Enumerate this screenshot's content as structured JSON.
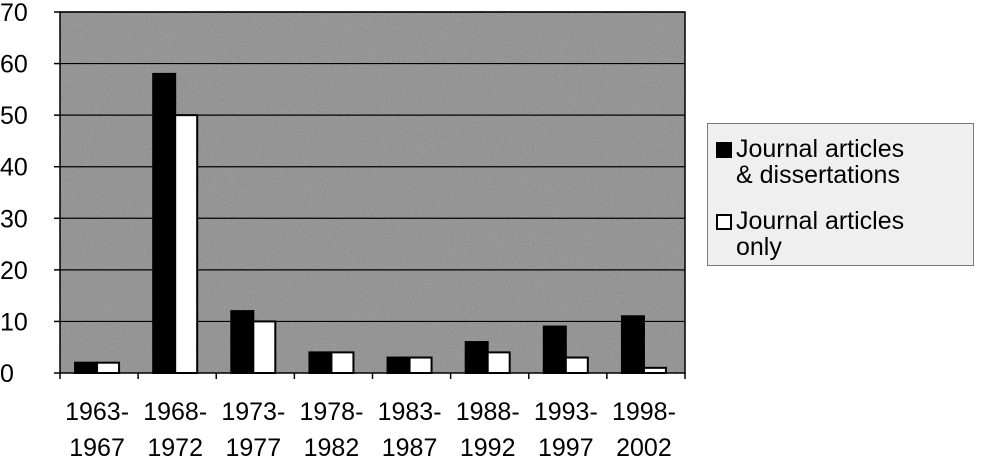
{
  "chart_data": {
    "type": "bar",
    "categories": [
      [
        "1963-",
        "1967"
      ],
      [
        "1968-",
        "1972"
      ],
      [
        "1973-",
        "1977"
      ],
      [
        "1978-",
        "1982"
      ],
      [
        "1983-",
        "1987"
      ],
      [
        "1988-",
        "1992"
      ],
      [
        "1993-",
        "1997"
      ],
      [
        "1998-",
        "2002"
      ]
    ],
    "series": [
      {
        "name": "Journal articles & dissertations",
        "values": [
          2,
          58,
          12,
          4,
          3,
          6,
          9,
          11
        ],
        "color": "#000000"
      },
      {
        "name": "Journal articles only",
        "values": [
          2,
          50,
          10,
          4,
          3,
          4,
          3,
          1
        ],
        "color": "#ffffff"
      }
    ],
    "title": "",
    "xlabel": "",
    "ylabel": "",
    "ylim": [
      0,
      70
    ],
    "yticks": [
      0,
      10,
      20,
      30,
      40,
      50,
      60,
      70
    ],
    "grid": true,
    "plot_background": "#8c8c8c",
    "legend_position": "right"
  },
  "legend": {
    "entries": [
      {
        "label": "Journal articles\n& dissertations",
        "swatch": "#000000"
      },
      {
        "label": "Journal articles\nonly",
        "swatch": "#ffffff"
      }
    ]
  }
}
